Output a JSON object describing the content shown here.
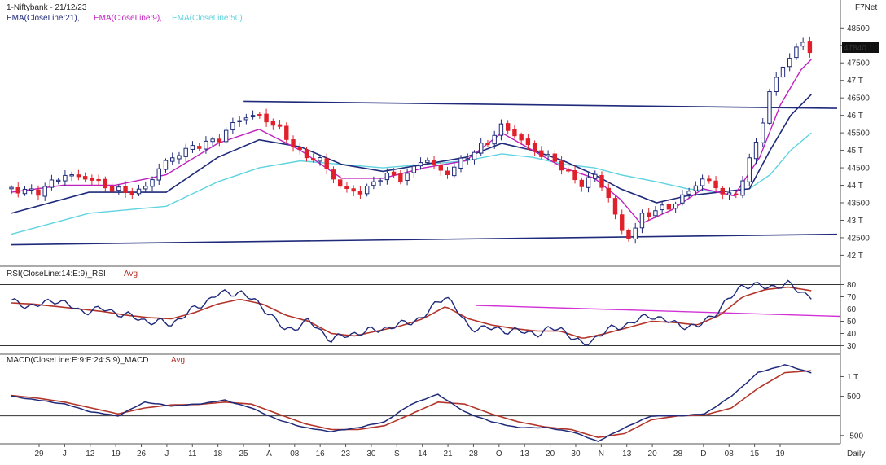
{
  "header": {
    "symbol_line": "1-Niftybank - 21/12/23",
    "brand": "F7Net",
    "ema_labels": [
      "EMA(CloseLine:21),",
      "EMA(CloseLine:9),",
      "EMA(CloseLine:50)"
    ],
    "colors": {
      "ema21": "#1f2a7a",
      "ema9": "#c21fbf",
      "ema50": "#5fd3e0",
      "up": "#1f2a7a",
      "down": "#e0202a",
      "macd_avg": "#b3352a",
      "rsi_avg": "#b3352a",
      "trend": "#1f2a7a",
      "rsi_trend": "#d231d6"
    }
  },
  "rsi_panel": {
    "title": "RSI(CloseLine:14:E:9)_RSI",
    "avg_label": "Avg",
    "ticks": [
      "80",
      "70",
      "60",
      "50",
      "40",
      "30"
    ]
  },
  "macd_panel": {
    "title": "MACD(CloseLine:E:9:E:24:S:9)_MACD",
    "avg_label": "Avg",
    "ticks": [
      "1 T",
      "500",
      "-500"
    ]
  },
  "price_axis": {
    "ticks": [
      "48500",
      "48 T",
      "47500",
      "47 T",
      "46500",
      "46 T",
      "45500",
      "45 T",
      "44500",
      "44 T",
      "43500",
      "43 T",
      "42500",
      "42 T"
    ],
    "last_price": "47840.1"
  },
  "x_axis": {
    "labels": [
      "29",
      "J",
      "12",
      "19",
      "26",
      "J",
      "11",
      "18",
      "25",
      "A",
      "08",
      "16",
      "23",
      "30",
      "S",
      "14",
      "21",
      "28",
      "O",
      "13",
      "20",
      "30",
      "N",
      "13",
      "20",
      "28",
      "D",
      "08",
      "15",
      "19"
    ],
    "timeframe": "Daily"
  },
  "chart_data": [
    {
      "type": "candlestick",
      "title": "1-Niftybank - 21/12/23",
      "y_range": [
        41800,
        48600
      ],
      "series": [
        {
          "name": "EMA(CloseLine:21)"
        },
        {
          "name": "EMA(CloseLine:9)"
        },
        {
          "name": "EMA(CloseLine:50)"
        }
      ],
      "last_price": 47840.1,
      "close_path": [
        [
          0,
          43900
        ],
        [
          10,
          43800
        ],
        [
          20,
          44300
        ],
        [
          30,
          44200
        ],
        [
          40,
          43850
        ],
        [
          50,
          43800
        ],
        [
          60,
          44700
        ],
        [
          70,
          45100
        ],
        [
          80,
          45300
        ],
        [
          88,
          45900
        ],
        [
          96,
          46000
        ],
        [
          104,
          45600
        ],
        [
          112,
          44900
        ],
        [
          120,
          44700
        ],
        [
          128,
          43900
        ],
        [
          136,
          43800
        ],
        [
          144,
          44300
        ],
        [
          152,
          44200
        ],
        [
          160,
          44800
        ],
        [
          168,
          44300
        ],
        [
          176,
          44800
        ],
        [
          184,
          45200
        ],
        [
          190,
          45700
        ],
        [
          196,
          45400
        ],
        [
          202,
          45000
        ],
        [
          208,
          44800
        ],
        [
          214,
          44500
        ],
        [
          220,
          44000
        ],
        [
          226,
          44300
        ],
        [
          232,
          43600
        ],
        [
          236,
          42700
        ],
        [
          240,
          42500
        ],
        [
          244,
          43100
        ],
        [
          250,
          43300
        ],
        [
          256,
          43400
        ],
        [
          262,
          43800
        ],
        [
          268,
          44200
        ],
        [
          274,
          43900
        ],
        [
          280,
          43600
        ],
        [
          286,
          44700
        ],
        [
          290,
          45500
        ],
        [
          294,
          46700
        ],
        [
          298,
          47300
        ],
        [
          302,
          47700
        ],
        [
          306,
          48100
        ],
        [
          310,
          47840
        ]
      ],
      "ema9_path": [
        [
          0,
          43800
        ],
        [
          20,
          44000
        ],
        [
          40,
          44000
        ],
        [
          60,
          44300
        ],
        [
          80,
          45200
        ],
        [
          96,
          45600
        ],
        [
          112,
          45000
        ],
        [
          128,
          44200
        ],
        [
          144,
          44200
        ],
        [
          160,
          44500
        ],
        [
          176,
          44700
        ],
        [
          190,
          45500
        ],
        [
          202,
          45000
        ],
        [
          214,
          44500
        ],
        [
          226,
          44200
        ],
        [
          236,
          43600
        ],
        [
          244,
          42900
        ],
        [
          256,
          43300
        ],
        [
          268,
          43900
        ],
        [
          280,
          43700
        ],
        [
          290,
          44800
        ],
        [
          298,
          46300
        ],
        [
          306,
          47300
        ],
        [
          310,
          47600
        ]
      ],
      "ema21_path": [
        [
          0,
          43200
        ],
        [
          30,
          43800
        ],
        [
          60,
          43800
        ],
        [
          80,
          44800
        ],
        [
          96,
          45300
        ],
        [
          112,
          45100
        ],
        [
          128,
          44600
        ],
        [
          144,
          44400
        ],
        [
          160,
          44600
        ],
        [
          176,
          44800
        ],
        [
          190,
          45200
        ],
        [
          202,
          45000
        ],
        [
          214,
          44700
        ],
        [
          226,
          44300
        ],
        [
          236,
          43900
        ],
        [
          250,
          43500
        ],
        [
          262,
          43700
        ],
        [
          274,
          43800
        ],
        [
          286,
          43900
        ],
        [
          294,
          45000
        ],
        [
          302,
          46000
        ],
        [
          310,
          46600
        ]
      ],
      "ema50_path": [
        [
          0,
          42600
        ],
        [
          30,
          43200
        ],
        [
          60,
          43400
        ],
        [
          80,
          44100
        ],
        [
          96,
          44500
        ],
        [
          112,
          44700
        ],
        [
          128,
          44600
        ],
        [
          144,
          44500
        ],
        [
          160,
          44600
        ],
        [
          176,
          44700
        ],
        [
          190,
          44900
        ],
        [
          202,
          44800
        ],
        [
          214,
          44600
        ],
        [
          226,
          44500
        ],
        [
          236,
          44300
        ],
        [
          250,
          44100
        ],
        [
          262,
          43900
        ],
        [
          274,
          43800
        ],
        [
          286,
          43900
        ],
        [
          294,
          44300
        ],
        [
          302,
          45000
        ],
        [
          310,
          45500
        ]
      ],
      "trendlines": [
        {
          "from": [
            0,
            42300
          ],
          "to": [
            320,
            42600
          ]
        },
        {
          "from": [
            90,
            46400
          ],
          "to": [
            320,
            46200
          ]
        }
      ]
    },
    {
      "type": "line",
      "title": "RSI(CloseLine:14:E:9)_RSI",
      "y_range": [
        25,
        85
      ],
      "series": [
        {
          "name": "RSI",
          "values": [
            66,
            62,
            68,
            58,
            60,
            55,
            50,
            48,
            60,
            72,
            74,
            62,
            42,
            50,
            35,
            40,
            43,
            47,
            53,
            72,
            45,
            44,
            42,
            40,
            45,
            30,
            42,
            48,
            55,
            48,
            45,
            60,
            80,
            78,
            80,
            70
          ]
        },
        {
          "name": "Avg",
          "values": [
            65,
            64,
            62,
            60,
            58,
            55,
            53,
            52,
            57,
            64,
            68,
            64,
            55,
            50,
            40,
            38,
            42,
            46,
            52,
            62,
            52,
            47,
            44,
            42,
            42,
            36,
            40,
            45,
            50,
            49,
            47,
            55,
            70,
            76,
            78,
            75
          ]
        }
      ],
      "trendline": {
        "from_value": 63,
        "to_value": 54
      }
    },
    {
      "type": "line",
      "title": "MACD(CloseLine:E:9:E:24:S:9)_MACD",
      "y_range": [
        -650,
        1300
      ],
      "series": [
        {
          "name": "MACD",
          "values": [
            500,
            400,
            300,
            100,
            0,
            350,
            250,
            300,
            400,
            200,
            -100,
            -300,
            -400,
            -300,
            -150,
            300,
            550,
            100,
            -150,
            -300,
            -300,
            -400,
            -650,
            -300,
            0,
            0,
            50,
            500,
            1100,
            1300,
            1100
          ]
        },
        {
          "name": "Avg",
          "values": [
            520,
            450,
            350,
            200,
            50,
            200,
            280,
            290,
            350,
            300,
            50,
            -200,
            -350,
            -350,
            -250,
            50,
            350,
            300,
            50,
            -150,
            -280,
            -350,
            -550,
            -450,
            -100,
            0,
            20,
            200,
            700,
            1100,
            1150
          ]
        }
      ]
    }
  ]
}
